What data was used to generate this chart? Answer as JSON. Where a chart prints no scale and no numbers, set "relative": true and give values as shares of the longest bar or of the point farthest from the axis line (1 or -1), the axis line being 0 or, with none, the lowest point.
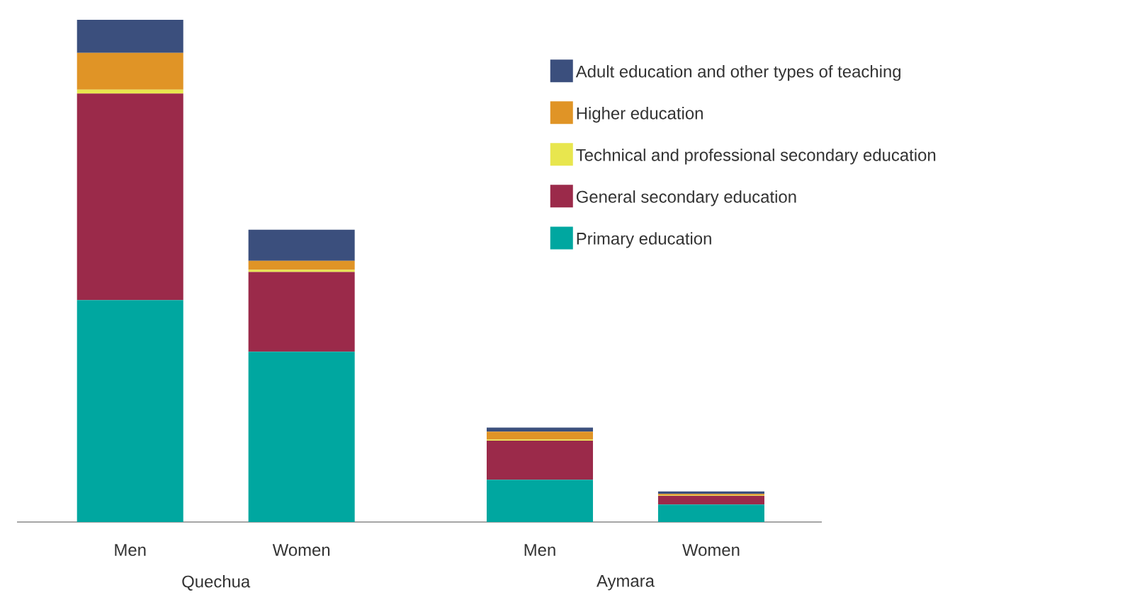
{
  "chart_data": {
    "type": "bar",
    "stacked": true,
    "relative": true,
    "categories": [
      "Men",
      "Women",
      "Men",
      "Women"
    ],
    "series": [
      {
        "name": "Primary education",
        "color": "#00a7a0",
        "values": [
          0.442,
          0.339,
          0.084,
          0.035
        ]
      },
      {
        "name": "General secondary education",
        "color": "#9b2a4a",
        "values": [
          0.411,
          0.159,
          0.078,
          0.017
        ]
      },
      {
        "name": "Technical and professional secondary education",
        "color": "#e8e64e",
        "values": [
          0.008,
          0.004,
          0.002,
          0.001
        ]
      },
      {
        "name": "Higher education",
        "color": "#e09426",
        "values": [
          0.073,
          0.018,
          0.016,
          0.003
        ]
      },
      {
        "name": "Adult education and other types of teaching",
        "color": "#3b4f7d",
        "values": [
          0.066,
          0.062,
          0.008,
          0.005
        ]
      }
    ],
    "annotations": [
      "Quechua",
      "Aymara"
    ],
    "legend": "top right"
  }
}
